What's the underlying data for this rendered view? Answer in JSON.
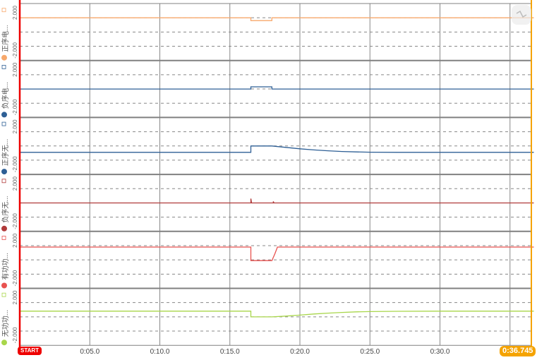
{
  "chart_data": {
    "type": "line",
    "x_unit": "time (m:ss.s)",
    "x_range": [
      0,
      36.745
    ],
    "x_ticks": [
      "0:05.0",
      "0:10.0",
      "0:15.0",
      "0:20.0",
      "0:25.0",
      "0:30.0"
    ],
    "x_tick_values": [
      5,
      10,
      15,
      20,
      25,
      30
    ],
    "cursor_start_label": "START",
    "cursor_end_label": "0:36.745",
    "grid": true,
    "panels": [
      {
        "name": "正序电...",
        "color": "#f7a86b",
        "ylim": [
          -2,
          2
        ],
        "y_top_label": "2.000",
        "y_bottom_label": "-2.000",
        "points": [
          [
            0,
            1
          ],
          [
            16.5,
            1
          ],
          [
            16.5,
            0.8
          ],
          [
            18,
            0.8
          ],
          [
            18,
            1
          ],
          [
            36.7,
            1
          ]
        ]
      },
      {
        "name": "负序电...",
        "color": "#2e5f95",
        "ylim": [
          -2,
          2
        ],
        "y_top_label": "2.000",
        "y_bottom_label": "-2.000",
        "points": [
          [
            0,
            0
          ],
          [
            16.5,
            0
          ],
          [
            16.5,
            0.15
          ],
          [
            18,
            0.15
          ],
          [
            18,
            0
          ],
          [
            36.7,
            0
          ]
        ]
      },
      {
        "name": "正序无...",
        "color": "#2e5f95",
        "ylim": [
          -2,
          2
        ],
        "y_top_label": "2.000",
        "y_bottom_label": "-2.000",
        "points": [
          [
            0,
            -0.45
          ],
          [
            16.5,
            -0.45
          ],
          [
            16.5,
            0
          ],
          [
            18,
            0
          ],
          [
            19,
            -0.1
          ],
          [
            20,
            -0.2
          ],
          [
            21,
            -0.28
          ],
          [
            22,
            -0.34
          ],
          [
            23,
            -0.39
          ],
          [
            24,
            -0.42
          ],
          [
            25,
            -0.44
          ],
          [
            27,
            -0.45
          ],
          [
            36.7,
            -0.45
          ]
        ]
      },
      {
        "name": "负序无...",
        "color": "#b03a3a",
        "ylim": [
          -2,
          2
        ],
        "y_top_label": "2.000",
        "y_bottom_label": "-2.000",
        "points": [
          [
            0,
            0
          ],
          [
            16.5,
            0
          ],
          [
            16.5,
            0.3
          ],
          [
            16.55,
            0
          ],
          [
            18.1,
            0
          ],
          [
            18.1,
            0.1
          ],
          [
            18.15,
            0
          ],
          [
            36.7,
            0
          ]
        ]
      },
      {
        "name": "有功功...",
        "color": "#e8524f",
        "ylim": [
          -2,
          2
        ],
        "y_top_label": "2.000",
        "y_bottom_label": "-2.000",
        "points": [
          [
            0,
            0.9
          ],
          [
            16.5,
            0.9
          ],
          [
            16.5,
            -0.05
          ],
          [
            18,
            -0.05
          ],
          [
            18.2,
            0.4
          ],
          [
            18.4,
            0.9
          ],
          [
            36.7,
            0.9
          ]
        ]
      },
      {
        "name": "无功功...",
        "color": "#a8d64a",
        "ylim": [
          -2,
          2
        ],
        "y_top_label": "2.000",
        "y_bottom_label": "-2.000",
        "points": [
          [
            0,
            0.4
          ],
          [
            16.5,
            0.4
          ],
          [
            16.5,
            0
          ],
          [
            18,
            0
          ],
          [
            19,
            0.05
          ],
          [
            20,
            0.12
          ],
          [
            21,
            0.2
          ],
          [
            22,
            0.26
          ],
          [
            23,
            0.31
          ],
          [
            24,
            0.35
          ],
          [
            25,
            0.37
          ],
          [
            27,
            0.39
          ],
          [
            30,
            0.4
          ],
          [
            36.7,
            0.4
          ]
        ]
      }
    ]
  },
  "toolbar": {
    "zoom_reset_icon": "zoom-reset-icon"
  }
}
